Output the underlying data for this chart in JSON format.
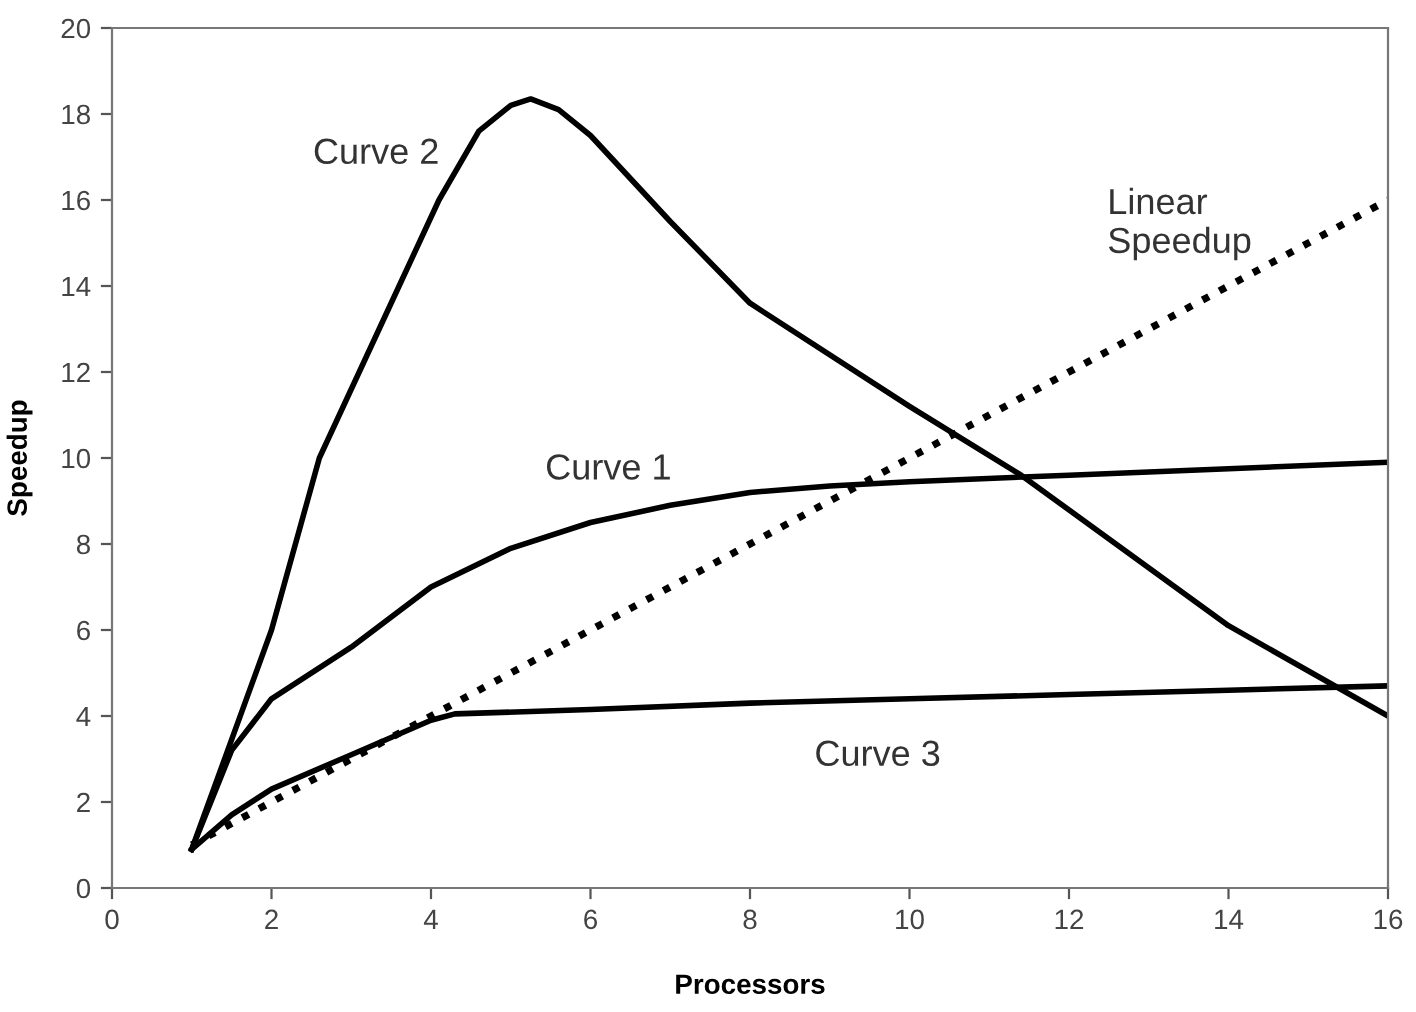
{
  "chart_data": {
    "type": "line",
    "xlabel": "Processors",
    "ylabel": "Speedup",
    "xlim": [
      0,
      16
    ],
    "xticks": [
      0,
      2,
      4,
      6,
      8,
      10,
      12,
      14,
      16
    ],
    "ylim": [
      0,
      20
    ],
    "yticks": [
      0,
      2,
      4,
      6,
      8,
      10,
      12,
      14,
      16,
      18,
      20
    ],
    "grid": false,
    "legend": false,
    "marker": "none",
    "series": [
      {
        "name": "Curve 1",
        "color": "#000000",
        "line_style": "solid",
        "x": [
          1,
          1.5,
          2,
          3,
          4,
          5,
          6,
          7,
          8,
          9,
          10,
          12,
          14,
          16
        ],
        "values": [
          0.9,
          3.2,
          4.4,
          5.6,
          7.0,
          7.9,
          8.5,
          8.9,
          9.2,
          9.35,
          9.45,
          9.6,
          9.75,
          9.9
        ]
      },
      {
        "name": "Curve 2",
        "color": "#000000",
        "line_style": "solid",
        "x": [
          1,
          2,
          2.6,
          3.6,
          4.1,
          4.6,
          5.0,
          5.25,
          5.6,
          6,
          7,
          8,
          10,
          11.4,
          14,
          16
        ],
        "values": [
          0.9,
          6.0,
          10.0,
          14.0,
          16.0,
          17.6,
          18.2,
          18.35,
          18.1,
          17.5,
          15.5,
          13.6,
          11.2,
          9.6,
          6.1,
          4.0
        ]
      },
      {
        "name": "Curve 3",
        "color": "#000000",
        "line_style": "solid",
        "x": [
          1,
          1.5,
          2,
          3,
          4,
          4.3,
          6,
          8,
          10,
          12,
          14,
          16
        ],
        "values": [
          0.9,
          1.7,
          2.3,
          3.1,
          3.9,
          4.05,
          4.15,
          4.3,
          4.4,
          4.5,
          4.6,
          4.7
        ]
      },
      {
        "name": "Linear\nSpeedup",
        "color": "#000000",
        "line_style": "dotted",
        "x": [
          1,
          16
        ],
        "values": [
          1,
          16
        ]
      }
    ]
  }
}
